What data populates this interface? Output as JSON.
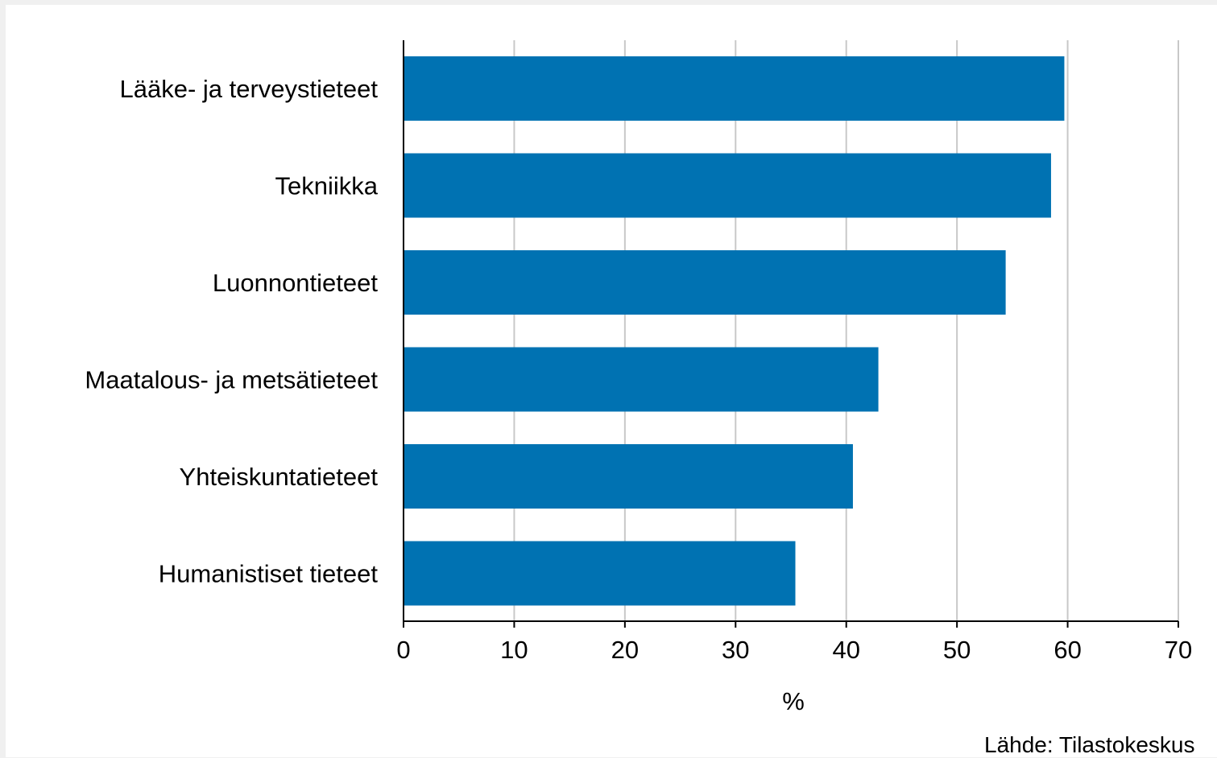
{
  "chart_data": {
    "type": "bar",
    "orientation": "horizontal",
    "categories": [
      "Lääke- ja terveystieteet",
      "Tekniikka",
      "Luonnontieteet",
      "Maatalous- ja metsätieteet",
      "Yhteiskuntatieteet",
      "Humanistiset tieteet"
    ],
    "values": [
      59.7,
      58.5,
      54.4,
      42.9,
      40.6,
      35.4
    ],
    "xlabel": "%",
    "ylabel": "",
    "xlim": [
      0,
      70
    ],
    "xticks": [
      0,
      10,
      20,
      30,
      40,
      50,
      60,
      70
    ],
    "grid": "vertical",
    "bar_color": "#0072b2",
    "grid_color": "#c8c8c8"
  },
  "source": "Lähde: Tilastokeskus"
}
